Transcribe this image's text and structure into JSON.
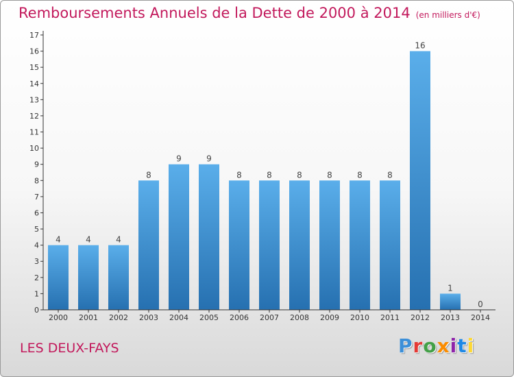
{
  "title": "Remboursements Annuels de la Dette de 2000 à 2014",
  "subtitle": "(en milliers d'€)",
  "commune": "LES DEUX-FAYS",
  "logo": {
    "text": "Proxiti",
    "colors": [
      "#3c8fd8",
      "#e53935",
      "#43a047",
      "#fb8c00",
      "#8e24aa",
      "#1e88e5",
      "#fdd835"
    ]
  },
  "colors": {
    "title": "#c2185b",
    "bar_light": "#5aaeea",
    "bar_dark": "#2670b0",
    "axis": "#333333"
  },
  "chart_data": {
    "type": "bar",
    "categories": [
      "2000",
      "2001",
      "2002",
      "2003",
      "2004",
      "2005",
      "2006",
      "2007",
      "2008",
      "2009",
      "2010",
      "2011",
      "2012",
      "2013",
      "2014"
    ],
    "values": [
      4,
      4,
      4,
      8,
      9,
      9,
      8,
      8,
      8,
      8,
      8,
      8,
      16,
      1,
      0
    ],
    "ylim": [
      0,
      17
    ],
    "yticks": [
      0,
      1,
      2,
      3,
      4,
      5,
      6,
      7,
      8,
      9,
      10,
      11,
      12,
      13,
      14,
      15,
      16,
      17
    ],
    "grid": false,
    "data_labels": true
  }
}
